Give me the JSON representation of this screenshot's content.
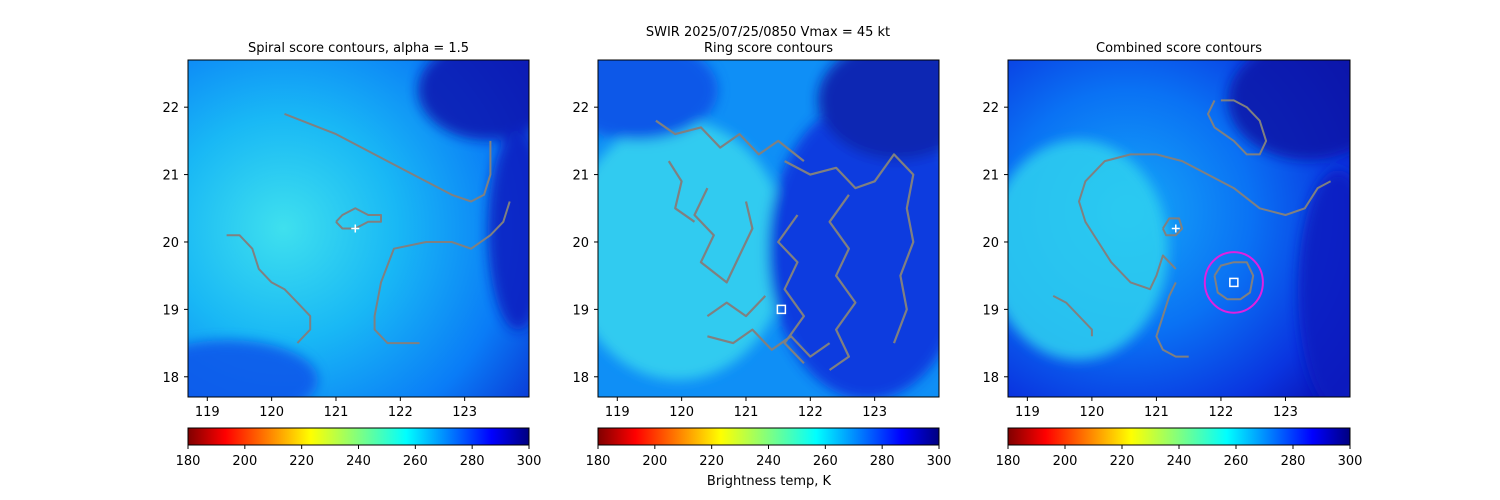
{
  "figure": {
    "suptitle_line1": "SWIR  2025/07/25/0850    Vmax = 45 kt",
    "colorbar_label": "Brightness temp, K"
  },
  "colors": {
    "contour": "#808080",
    "marker": "#ffffff",
    "circle": "#e020e0"
  },
  "chart_data": [
    {
      "type": "heatmap",
      "title": "Spiral score contours, alpha =  1.5",
      "xlim": [
        118.7,
        124.0
      ],
      "ylim": [
        17.7,
        22.7
      ],
      "x_ticks": [
        "119",
        "120",
        "121",
        "122",
        "123"
      ],
      "y_ticks": [
        "18",
        "19",
        "20",
        "21",
        "22"
      ],
      "colormap": "jet_reversed",
      "color_range": [
        180,
        300
      ],
      "markers": [
        {
          "symbol": "plus",
          "x": 121.3,
          "y": 20.2
        }
      ],
      "contours": [
        [
          [
            120.2,
            21.9
          ],
          [
            121.0,
            21.6
          ],
          [
            121.6,
            21.3
          ],
          [
            122.2,
            21.0
          ],
          [
            122.8,
            20.7
          ],
          [
            123.1,
            20.6
          ],
          [
            123.3,
            20.7
          ],
          [
            123.4,
            21.0
          ],
          [
            123.4,
            21.5
          ]
        ],
        [
          [
            119.3,
            20.1
          ],
          [
            119.5,
            20.1
          ],
          [
            119.7,
            19.9
          ],
          [
            119.8,
            19.6
          ],
          [
            120.0,
            19.4
          ],
          [
            120.2,
            19.3
          ],
          [
            120.4,
            19.1
          ],
          [
            120.6,
            18.9
          ],
          [
            120.6,
            18.7
          ],
          [
            120.4,
            18.5
          ]
        ],
        [
          [
            121.0,
            20.3
          ],
          [
            121.1,
            20.4
          ],
          [
            121.3,
            20.5
          ],
          [
            121.5,
            20.4
          ],
          [
            121.7,
            20.4
          ],
          [
            121.7,
            20.3
          ],
          [
            121.5,
            20.3
          ],
          [
            121.3,
            20.2
          ],
          [
            121.1,
            20.2
          ],
          [
            121.0,
            20.3
          ]
        ],
        [
          [
            123.7,
            20.6
          ],
          [
            123.6,
            20.3
          ],
          [
            123.4,
            20.1
          ],
          [
            123.1,
            19.9
          ],
          [
            122.8,
            20.0
          ],
          [
            122.4,
            20.0
          ],
          [
            121.9,
            19.9
          ],
          [
            121.7,
            19.4
          ],
          [
            121.6,
            18.9
          ],
          [
            121.6,
            18.7
          ],
          [
            121.8,
            18.5
          ],
          [
            122.3,
            18.5
          ]
        ]
      ]
    },
    {
      "type": "heatmap",
      "title": "Ring score contours",
      "xlim": [
        118.7,
        124.0
      ],
      "ylim": [
        17.7,
        22.7
      ],
      "x_ticks": [
        "119",
        "120",
        "121",
        "122",
        "123"
      ],
      "y_ticks": [
        "18",
        "19",
        "20",
        "21",
        "22"
      ],
      "colormap": "jet_reversed",
      "color_range": [
        180,
        300
      ],
      "markers": [
        {
          "symbol": "square",
          "x": 121.55,
          "y": 19.0
        }
      ],
      "contours": [
        [
          [
            119.6,
            21.8
          ],
          [
            119.9,
            21.6
          ],
          [
            120.3,
            21.7
          ],
          [
            120.6,
            21.4
          ],
          [
            120.9,
            21.6
          ],
          [
            121.2,
            21.3
          ],
          [
            121.5,
            21.5
          ],
          [
            121.9,
            21.2
          ]
        ],
        [
          [
            121.6,
            21.2
          ],
          [
            122.0,
            21.0
          ],
          [
            122.4,
            21.1
          ],
          [
            122.7,
            20.8
          ],
          [
            123.0,
            20.9
          ],
          [
            123.3,
            21.3
          ],
          [
            123.6,
            21.0
          ],
          [
            123.5,
            20.5
          ],
          [
            123.6,
            20.0
          ],
          [
            123.4,
            19.5
          ],
          [
            123.5,
            19.0
          ],
          [
            123.3,
            18.5
          ]
        ],
        [
          [
            122.6,
            20.7
          ],
          [
            122.3,
            20.3
          ],
          [
            122.6,
            19.9
          ],
          [
            122.4,
            19.5
          ],
          [
            122.7,
            19.1
          ],
          [
            122.4,
            18.7
          ],
          [
            122.6,
            18.3
          ],
          [
            122.3,
            18.1
          ]
        ],
        [
          [
            121.8,
            20.4
          ],
          [
            121.5,
            20.0
          ],
          [
            121.8,
            19.7
          ],
          [
            121.6,
            19.3
          ],
          [
            121.9,
            18.9
          ],
          [
            121.6,
            18.5
          ],
          [
            121.9,
            18.2
          ]
        ],
        [
          [
            120.4,
            20.8
          ],
          [
            120.2,
            20.4
          ],
          [
            120.5,
            20.1
          ],
          [
            120.3,
            19.7
          ],
          [
            120.7,
            19.4
          ],
          [
            120.9,
            19.8
          ],
          [
            121.1,
            20.2
          ],
          [
            121.0,
            20.6
          ]
        ],
        [
          [
            120.4,
            18.6
          ],
          [
            120.8,
            18.5
          ],
          [
            121.1,
            18.7
          ],
          [
            121.4,
            18.4
          ],
          [
            121.7,
            18.6
          ],
          [
            122.0,
            18.3
          ],
          [
            122.3,
            18.5
          ]
        ],
        [
          [
            120.4,
            18.9
          ],
          [
            120.7,
            19.1
          ],
          [
            121.0,
            18.9
          ],
          [
            121.3,
            19.2
          ]
        ],
        [
          [
            119.8,
            21.2
          ],
          [
            120.0,
            20.9
          ],
          [
            119.9,
            20.5
          ],
          [
            120.2,
            20.3
          ]
        ]
      ]
    },
    {
      "type": "heatmap",
      "title": "Combined score contours",
      "xlim": [
        118.7,
        124.0
      ],
      "ylim": [
        17.7,
        22.7
      ],
      "x_ticks": [
        "119",
        "120",
        "121",
        "122",
        "123"
      ],
      "y_ticks": [
        "18",
        "19",
        "20",
        "21",
        "22"
      ],
      "colormap": "jet_reversed",
      "color_range": [
        180,
        300
      ],
      "markers": [
        {
          "symbol": "plus",
          "x": 121.3,
          "y": 20.2
        },
        {
          "symbol": "square",
          "x": 122.2,
          "y": 19.4
        }
      ],
      "circle": {
        "x": 122.2,
        "y": 19.4,
        "r": 0.45
      },
      "contours": [
        [
          [
            121.9,
            22.1
          ],
          [
            121.8,
            21.9
          ],
          [
            121.9,
            21.7
          ],
          [
            122.2,
            21.5
          ],
          [
            122.4,
            21.3
          ],
          [
            122.6,
            21.3
          ],
          [
            122.7,
            21.5
          ],
          [
            122.6,
            21.8
          ],
          [
            122.4,
            22.0
          ],
          [
            122.2,
            22.1
          ],
          [
            122.0,
            22.1
          ]
        ],
        [
          [
            121.3,
            19.4
          ],
          [
            121.2,
            19.2
          ],
          [
            121.1,
            18.9
          ],
          [
            121.0,
            18.6
          ],
          [
            121.1,
            18.4
          ],
          [
            121.3,
            18.3
          ],
          [
            121.5,
            18.3
          ]
        ],
        [
          [
            120.1,
            20.0
          ],
          [
            119.9,
            20.3
          ],
          [
            119.8,
            20.6
          ],
          [
            119.9,
            20.9
          ],
          [
            120.2,
            21.2
          ],
          [
            120.6,
            21.3
          ],
          [
            121.0,
            21.3
          ],
          [
            121.4,
            21.2
          ],
          [
            121.8,
            21.0
          ],
          [
            122.2,
            20.8
          ],
          [
            122.6,
            20.5
          ],
          [
            123.0,
            20.4
          ],
          [
            123.3,
            20.5
          ],
          [
            123.5,
            20.8
          ],
          [
            123.7,
            20.9
          ]
        ],
        [
          [
            120.1,
            20.0
          ],
          [
            120.3,
            19.7
          ],
          [
            120.6,
            19.4
          ],
          [
            120.9,
            19.3
          ],
          [
            121.0,
            19.5
          ],
          [
            121.1,
            19.8
          ],
          [
            121.3,
            19.6
          ]
        ],
        [
          [
            119.4,
            19.2
          ],
          [
            119.6,
            19.1
          ],
          [
            119.8,
            18.9
          ],
          [
            120.0,
            18.7
          ],
          [
            120.0,
            18.6
          ]
        ],
        [
          [
            121.1,
            20.2
          ],
          [
            121.2,
            20.35
          ],
          [
            121.35,
            20.35
          ],
          [
            121.4,
            20.2
          ],
          [
            121.3,
            20.1
          ],
          [
            121.15,
            20.1
          ],
          [
            121.1,
            20.2
          ]
        ],
        [
          [
            121.9,
            19.5
          ],
          [
            122.0,
            19.65
          ],
          [
            122.2,
            19.7
          ],
          [
            122.4,
            19.7
          ],
          [
            122.5,
            19.5
          ],
          [
            122.45,
            19.25
          ],
          [
            122.3,
            19.15
          ],
          [
            122.1,
            19.15
          ],
          [
            121.95,
            19.25
          ],
          [
            121.9,
            19.5
          ]
        ]
      ]
    }
  ],
  "colorbar": {
    "ticks": [
      "180",
      "200",
      "220",
      "240",
      "260",
      "280",
      "300"
    ]
  }
}
